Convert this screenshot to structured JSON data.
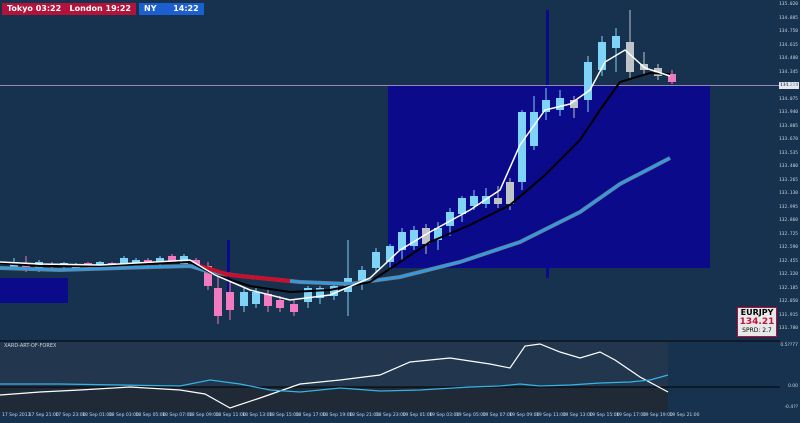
{
  "sessions": {
    "tokyo": "Tokyo 03:22",
    "london": "London 19:22",
    "ny_label": "NY",
    "ny_time": "14:22"
  },
  "symbol_box": {
    "symbol": "EURJPY",
    "price": "134.21",
    "spread": "SPRD: 2.7"
  },
  "current_price_label": "134.210",
  "indicator": {
    "name": "XARD-ART-OF-FOREX",
    "ticks": [
      "0.5??77",
      "0.00",
      "-0.4??"
    ]
  },
  "y_ticks": [
    "135.020",
    "134.885",
    "134.750",
    "134.615",
    "134.480",
    "134.345",
    "134.210",
    "134.075",
    "133.940",
    "133.805",
    "133.670",
    "133.535",
    "133.400",
    "133.265",
    "133.130",
    "132.995",
    "132.860",
    "132.725",
    "132.590",
    "132.455",
    "132.320",
    "132.185",
    "132.050",
    "131.915",
    "131.780"
  ],
  "x_ticks": [
    "17 Sep 2013",
    "17 Sep 21:00",
    "17 Sep 23:00",
    "18 Sep 01:00",
    "18 Sep 03:00",
    "18 Sep 05:00",
    "18 Sep 07:00",
    "18 Sep 09:00",
    "18 Sep 11:00",
    "18 Sep 13:00",
    "18 Sep 15:00",
    "18 Sep 17:00",
    "18 Sep 19:00",
    "18 Sep 21:00",
    "18 Sep 23:00",
    "19 Sep 01:00",
    "19 Sep 03:00",
    "19 Sep 05:00",
    "19 Sep 07:00",
    "19 Sep 09:00",
    "19 Sep 11:00",
    "19 Sep 13:00",
    "19 Sep 15:00",
    "19 Sep 17:00",
    "19 Sep 19:00",
    "19 Sep 21:00"
  ],
  "colors": {
    "background": "#17324f",
    "bull_candle": "#7fd3f7",
    "bear_candle": "#f27ac0",
    "neutral_candle": "#bfc4c9",
    "zone": "#0b0a8a",
    "ma_black": "#000000",
    "ma_white": "#ffffff",
    "ma_blue": "#2f9be8",
    "ma_grey": "#7a7a7a",
    "ma_red": "#c8102e"
  }
}
